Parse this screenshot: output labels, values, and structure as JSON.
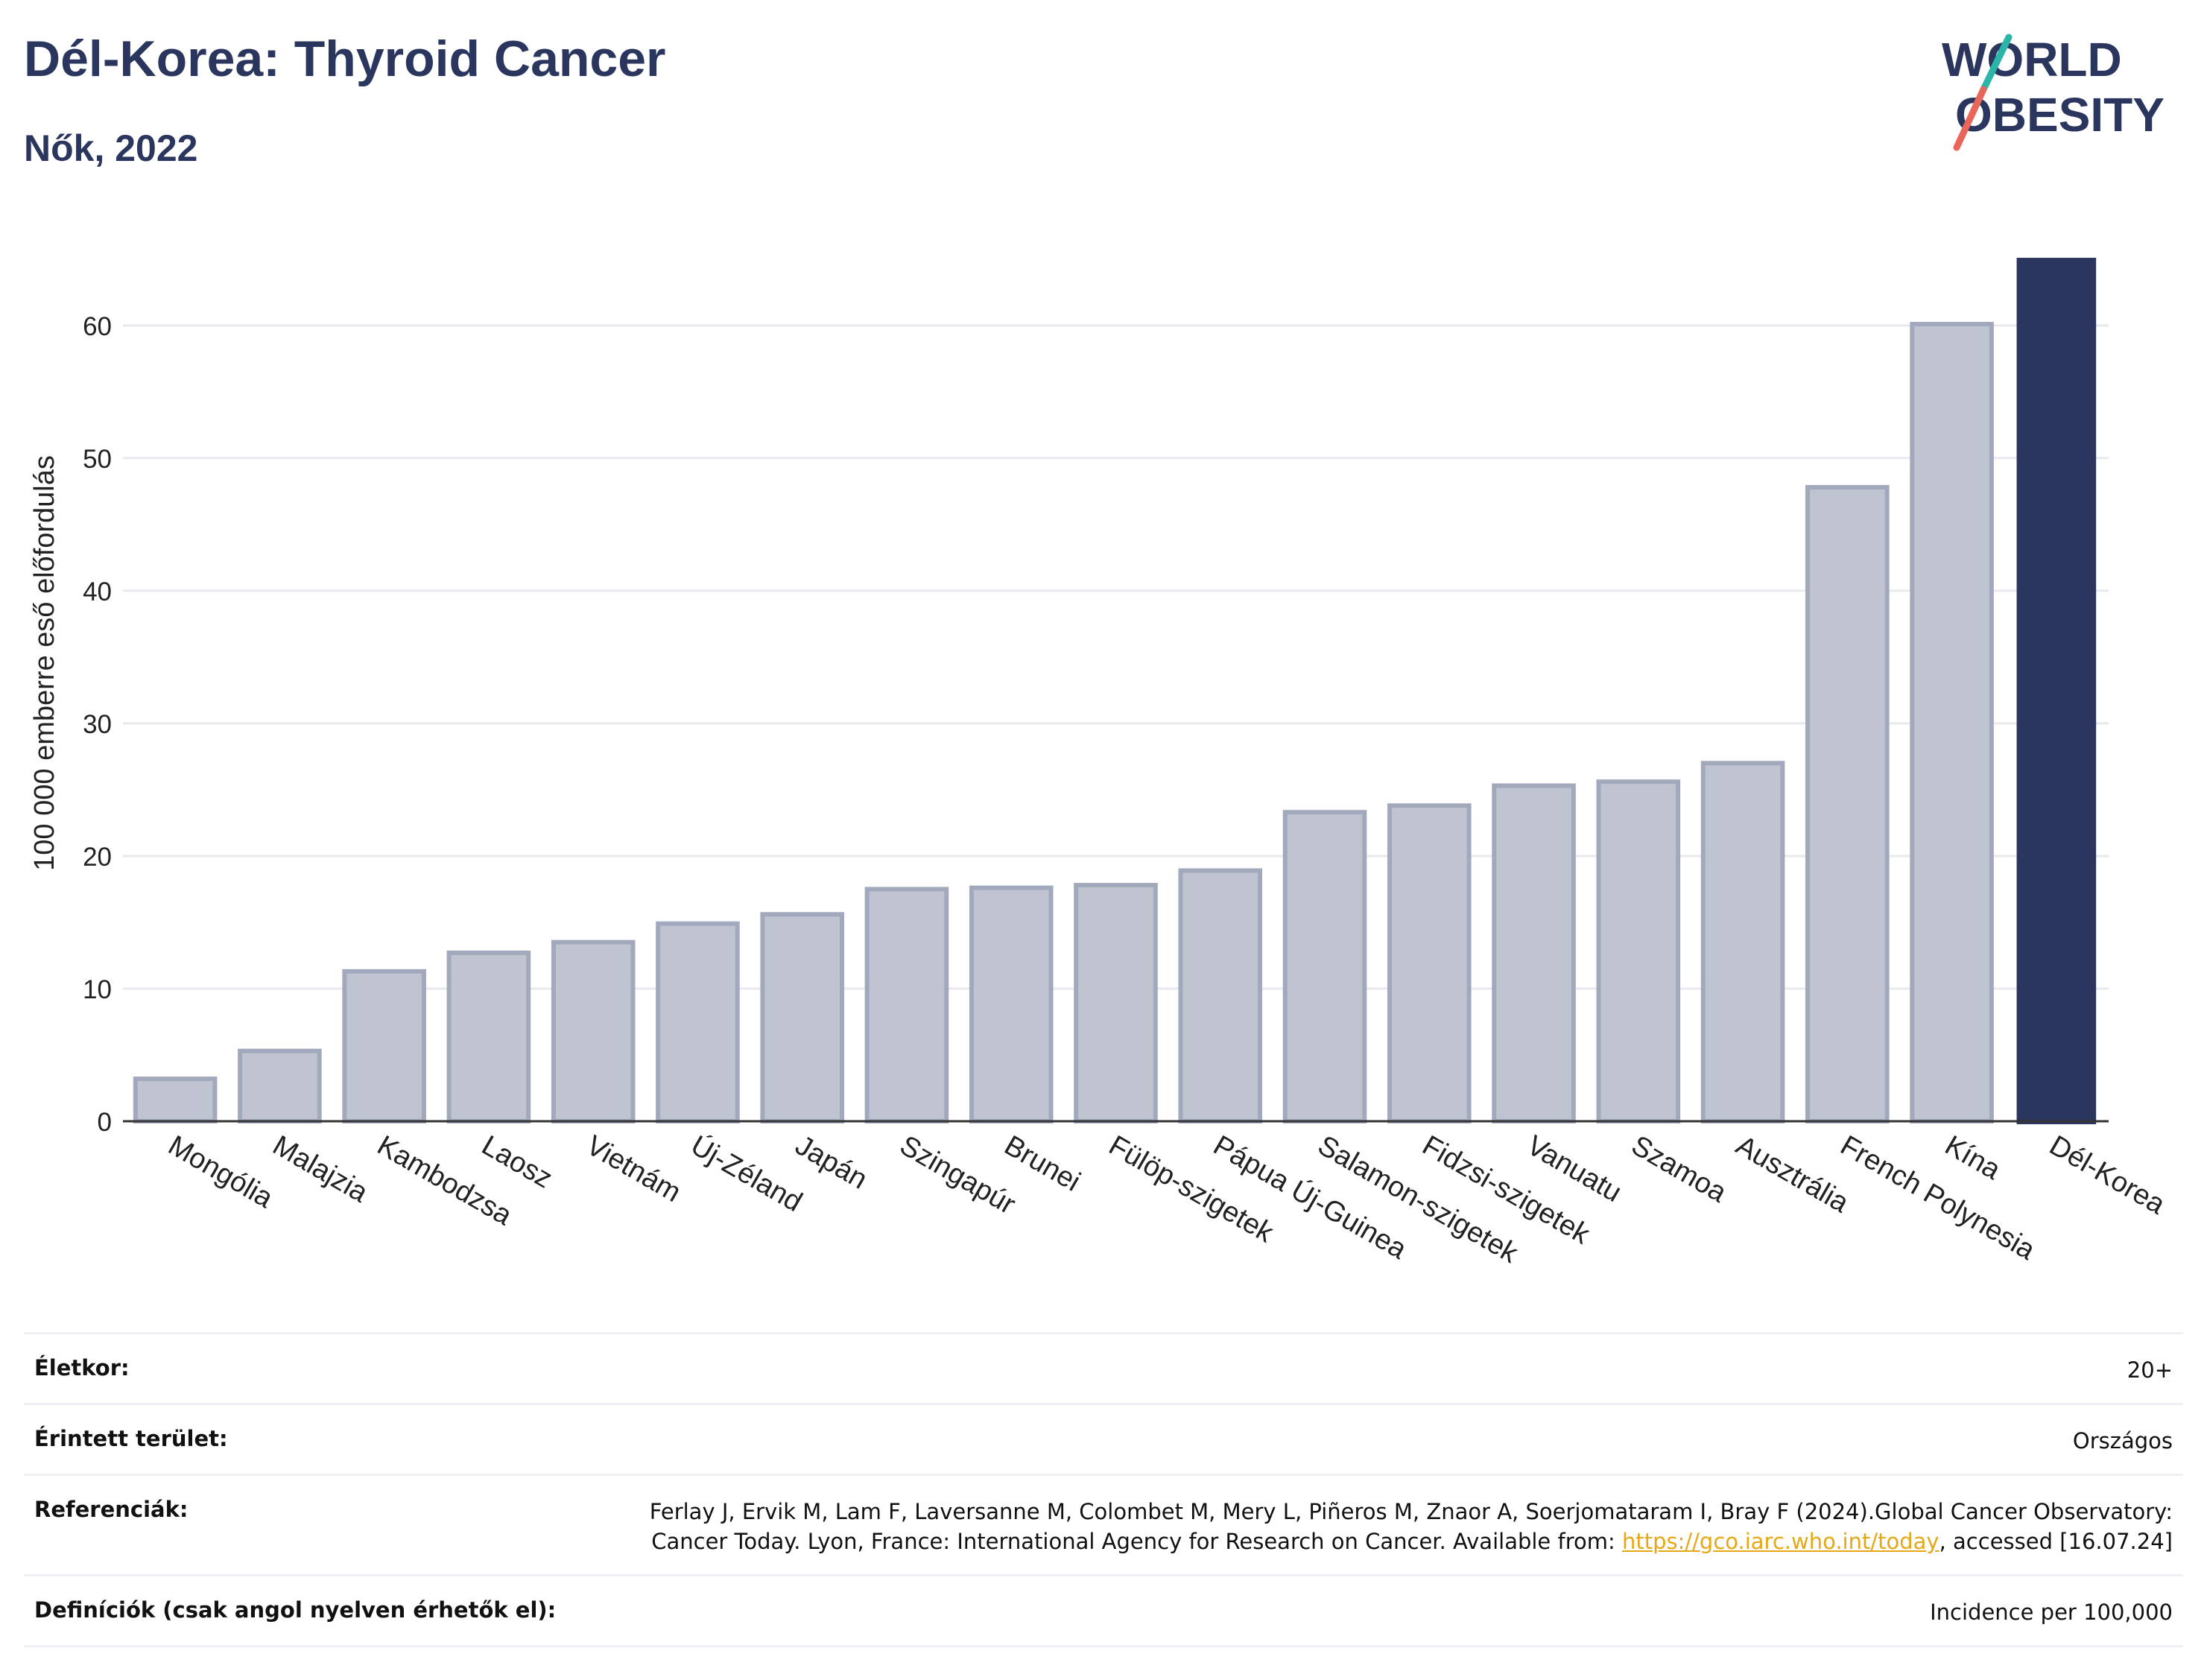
{
  "header": {
    "title": "Dél-Korea: Thyroid Cancer",
    "subtitle": "Nők, 2022",
    "logo_line1": "WORLD",
    "logo_line2": "OBESITY"
  },
  "colors": {
    "title": "#2b365e",
    "bar_default_fill": "#c0c4d1",
    "bar_default_stroke": "#a3a9bd",
    "bar_highlight": "#2b365e",
    "gridline": "#e8e9ee",
    "axis": "#333333",
    "logo_slash_teal": "#2bb5a8",
    "logo_slash_coral": "#e8675a",
    "link": "#e6a817"
  },
  "chart_data": {
    "type": "bar",
    "ylabel": "100 000 emberre eső előfordulás",
    "ylim": [
      0,
      66
    ],
    "yticks": [
      0,
      10,
      20,
      30,
      40,
      50,
      60
    ],
    "grid": true,
    "highlight": "Dél-Korea",
    "categories": [
      "Mongólia",
      "Malajzia",
      "Kambodzsa",
      "Laosz",
      "Vietnám",
      "Új-Zéland",
      "Japán",
      "Szingapúr",
      "Brunei",
      "Fülöp-szigetek",
      "Pápua Új-Guinea",
      "Salamon-szigetek",
      "Fidzsi-szigetek",
      "Vanuatu",
      "Szamoa",
      "Ausztrália",
      "French Polynesia",
      "Kína",
      "Dél-Korea"
    ],
    "values": [
      3.2,
      5.3,
      11.3,
      12.7,
      13.5,
      14.9,
      15.6,
      17.5,
      17.6,
      17.8,
      18.9,
      23.3,
      23.8,
      25.3,
      25.6,
      27.0,
      47.8,
      60.1,
      65.1
    ]
  },
  "info": {
    "age_label": "Életkor:",
    "age_value": "20+",
    "area_label": "Érintett terület:",
    "area_value": "Országos",
    "ref_label": "Referenciák:",
    "ref_text_1": "Ferlay J, Ervik M, Lam F, Laversanne M, Colombet M, Mery L, Piñeros M, Znaor A, Soerjomataram I, Bray F (2024).Global Cancer Observatory: Cancer Today. Lyon, France: International Agency for Research on Cancer. Available from: ",
    "ref_link": "https://gco.iarc.who.int/today",
    "ref_text_2": ", accessed [16.07.24]",
    "def_label": "Definíciók (csak angol nyelven érhetők el):",
    "def_value": "Incidence per 100,000"
  }
}
